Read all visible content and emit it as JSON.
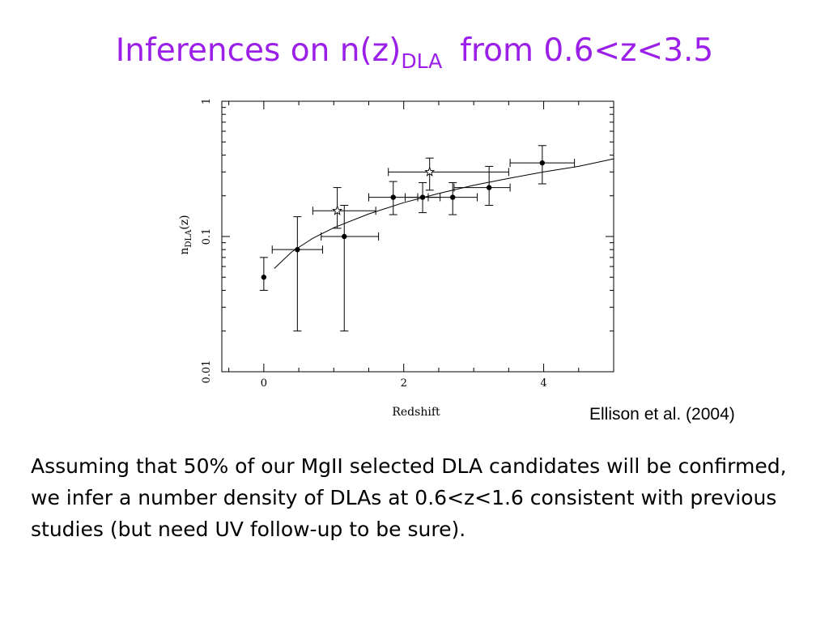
{
  "slide": {
    "title_main": "Inferences on n(z)",
    "title_sub": "DLA",
    "title_tail": "from 0.6<z<3.5",
    "citation": "Ellison et al. (2004)",
    "body": "Assuming that 50% of our MgII selected DLA candidates will be confirmed, we infer a number density of DLAs at 0.6<z<1.6 consistent with previous studies (but need UV follow-up to be sure)."
  },
  "chart_data": {
    "type": "scatter",
    "title": "",
    "xlabel": "Redshift",
    "ylabel": {
      "main": "n",
      "sub": "DLA",
      "tail": "(z)"
    },
    "xlim": [
      -0.6,
      5.0
    ],
    "ylim": [
      0.01,
      1
    ],
    "yscale": "log",
    "xticks": [
      0,
      2,
      4
    ],
    "xtick_labels": [
      "0",
      "2",
      "4"
    ],
    "yticks": [
      0.01,
      0.1,
      1
    ],
    "ytick_labels": [
      "0.01",
      "0.1",
      "1"
    ],
    "grid": false,
    "legend": "none",
    "series": [
      {
        "marker": "filled-circle",
        "points": [
          {
            "x": 0.0,
            "y": 0.05,
            "y_low": 0.04,
            "y_high": 0.07
          },
          {
            "x": 0.48,
            "y": 0.08,
            "y_low": 0.02,
            "y_high": 0.14,
            "x_low": 0.12,
            "x_high": 0.84
          },
          {
            "x": 1.15,
            "y": 0.1,
            "y_low": 0.02,
            "y_high": 0.17,
            "x_low": 0.82,
            "x_high": 1.64
          },
          {
            "x": 1.85,
            "y": 0.195,
            "y_low": 0.145,
            "y_high": 0.255,
            "x_low": 1.5,
            "x_high": 2.2
          },
          {
            "x": 2.27,
            "y": 0.195,
            "y_low": 0.15,
            "y_high": 0.25,
            "x_low": 2.02,
            "x_high": 2.52
          },
          {
            "x": 2.7,
            "y": 0.195,
            "y_low": 0.145,
            "y_high": 0.25,
            "x_low": 2.35,
            "x_high": 3.05
          },
          {
            "x": 3.22,
            "y": 0.23,
            "y_low": 0.17,
            "y_high": 0.33,
            "x_low": 2.72,
            "x_high": 3.52
          },
          {
            "x": 3.98,
            "y": 0.35,
            "y_low": 0.245,
            "y_high": 0.47,
            "x_low": 3.52,
            "x_high": 4.44
          }
        ]
      },
      {
        "marker": "open-star",
        "points": [
          {
            "x": 1.05,
            "y": 0.155,
            "y_low": 0.115,
            "y_high": 0.23,
            "x_low": 0.7,
            "x_high": 1.6
          },
          {
            "x": 2.37,
            "y": 0.3,
            "y_low": 0.22,
            "y_high": 0.38,
            "x_low": 1.78,
            "x_high": 3.5
          }
        ]
      },
      {
        "marker": "line",
        "curve": {
          "x": [
            0.15,
            0.4,
            0.7,
            1.0,
            1.5,
            2.0,
            2.5,
            3.0,
            3.5,
            4.0,
            4.5,
            5.0
          ],
          "y": [
            0.058,
            0.077,
            0.097,
            0.116,
            0.147,
            0.178,
            0.208,
            0.239,
            0.269,
            0.3,
            0.33,
            0.375
          ]
        }
      }
    ]
  }
}
